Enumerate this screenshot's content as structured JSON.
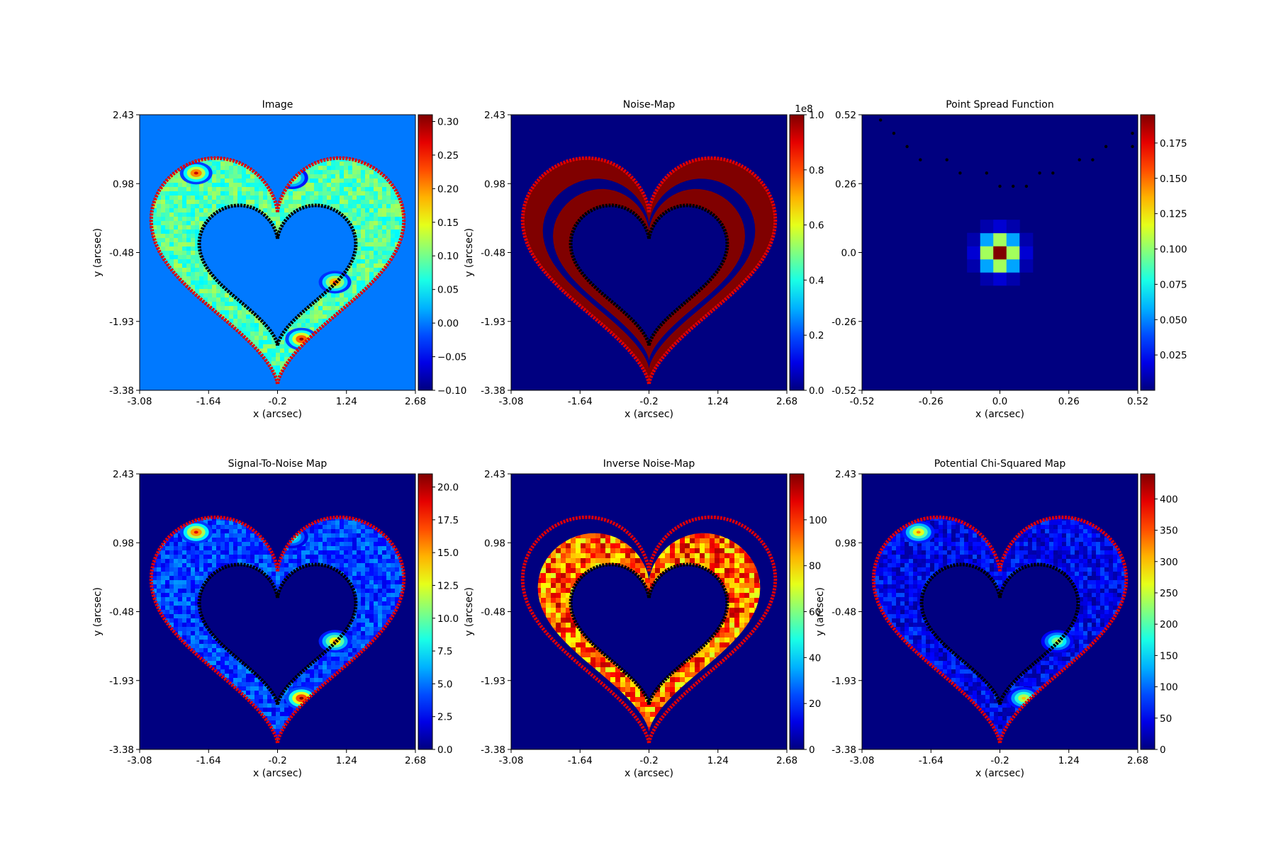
{
  "chart_data": [
    {
      "type": "heatmap",
      "title": "Image",
      "xlabel": "x (arcsec)",
      "ylabel": "y (arcsec)",
      "xticks": [
        "-3.08",
        "-1.64",
        "-0.2",
        "1.24",
        "2.68"
      ],
      "yticks": [
        "2.43",
        "0.98",
        "-0.48",
        "-1.93",
        "-3.38"
      ],
      "colorbar": {
        "ticks": [
          "0.30",
          "0.25",
          "0.20",
          "0.15",
          "0.10",
          "0.05",
          "0.00",
          "−0.05",
          "−0.10"
        ],
        "range": [
          -0.1,
          0.31
        ],
        "scale_label": ""
      },
      "colormap": "jet",
      "background_level": 0.0,
      "shape": "heart-arc",
      "mask_border": true,
      "peaks": [
        {
          "x": -1.9,
          "y": 1.2,
          "value": 0.28
        },
        {
          "x": 0.1,
          "y": 1.1,
          "value": 0.2
        },
        {
          "x": 1.0,
          "y": -1.1,
          "value": 0.25
        },
        {
          "x": 0.3,
          "y": -2.3,
          "value": 0.3
        }
      ]
    },
    {
      "type": "heatmap",
      "title": "Noise-Map",
      "xlabel": "x (arcsec)",
      "ylabel": "y (arcsec)",
      "xticks": [
        "-3.08",
        "-1.64",
        "-0.2",
        "1.24",
        "2.68"
      ],
      "yticks": [
        "2.43",
        "0.98",
        "-0.48",
        "-1.93",
        "-3.38"
      ],
      "colorbar": {
        "ticks": [
          "1.0",
          "0.8",
          "0.6",
          "0.4",
          "0.2",
          "0.0"
        ],
        "range": [
          0,
          1.0
        ],
        "scale_label": "1e8"
      },
      "colormap": "jet",
      "background_level": 0.0,
      "shape": "heart-band",
      "mask_border": true,
      "band_value": 1.0
    },
    {
      "type": "heatmap",
      "title": "Point Spread Function",
      "xlabel": "x (arcsec)",
      "ylabel": "",
      "xticks": [
        "-0.52",
        "-0.26",
        "0.0",
        "0.26",
        "0.52"
      ],
      "yticks": [
        "0.52",
        "0.26",
        "0.0",
        "-0.26",
        "-0.52"
      ],
      "colorbar": {
        "ticks": [
          "0.175",
          "0.150",
          "0.125",
          "0.100",
          "0.075",
          "0.050",
          "0.025"
        ],
        "range": [
          0,
          0.195
        ],
        "scale_label": ""
      },
      "colormap": "jet",
      "background_level": 0.0,
      "shape": "psf",
      "peak_value": 0.195
    },
    {
      "type": "heatmap",
      "title": "Signal-To-Noise Map",
      "xlabel": "x (arcsec)",
      "ylabel": "y (arcsec)",
      "xticks": [
        "-3.08",
        "-1.64",
        "-0.2",
        "1.24",
        "2.68"
      ],
      "yticks": [
        "2.43",
        "0.98",
        "-0.48",
        "-1.93",
        "-3.38"
      ],
      "colorbar": {
        "ticks": [
          "20.0",
          "17.5",
          "15.0",
          "12.5",
          "10.0",
          "7.5",
          "5.0",
          "2.5",
          "0.0"
        ],
        "range": [
          0,
          21
        ],
        "scale_label": ""
      },
      "colormap": "jet",
      "background_level": 0.0,
      "shape": "heart-arc",
      "mask_border": true,
      "peaks": [
        {
          "x": -1.9,
          "y": 1.2,
          "value": 19
        },
        {
          "x": 0.1,
          "y": 1.1,
          "value": 11
        },
        {
          "x": 1.0,
          "y": -1.1,
          "value": 16
        },
        {
          "x": 0.3,
          "y": -2.3,
          "value": 21
        }
      ]
    },
    {
      "type": "heatmap",
      "title": "Inverse Noise-Map",
      "xlabel": "x (arcsec)",
      "ylabel": "y (arcsec)",
      "xticks": [
        "-3.08",
        "-1.64",
        "-0.2",
        "1.24",
        "2.68"
      ],
      "yticks": [
        "2.43",
        "0.98",
        "-0.48",
        "-1.93",
        "-3.38"
      ],
      "colorbar": {
        "ticks": [
          "100",
          "80",
          "60",
          "40",
          "20",
          "0"
        ],
        "range": [
          0,
          120
        ],
        "scale_label": ""
      },
      "colormap": "jet",
      "background_level": 0.0,
      "shape": "heart-fill",
      "mask_border": true,
      "fill_range": [
        70,
        115
      ]
    },
    {
      "type": "heatmap",
      "title": "Potential Chi-Squared Map",
      "xlabel": "x (arcsec)",
      "ylabel": "y (arcsec)",
      "xticks": [
        "-3.08",
        "-1.64",
        "-0.2",
        "1.24",
        "2.68"
      ],
      "yticks": [
        "2.43",
        "0.98",
        "-0.48",
        "-1.93",
        "-3.38"
      ],
      "colorbar": {
        "ticks": [
          "400",
          "350",
          "300",
          "250",
          "200",
          "150",
          "100",
          "50",
          "0"
        ],
        "range": [
          0,
          440
        ],
        "scale_label": ""
      },
      "colormap": "jet",
      "background_level": 0.0,
      "shape": "heart-arc",
      "mask_border": true,
      "peaks": [
        {
          "x": -1.9,
          "y": 1.2,
          "value": 330
        },
        {
          "x": 1.0,
          "y": -1.1,
          "value": 260
        },
        {
          "x": 0.3,
          "y": -2.3,
          "value": 300
        }
      ]
    }
  ]
}
